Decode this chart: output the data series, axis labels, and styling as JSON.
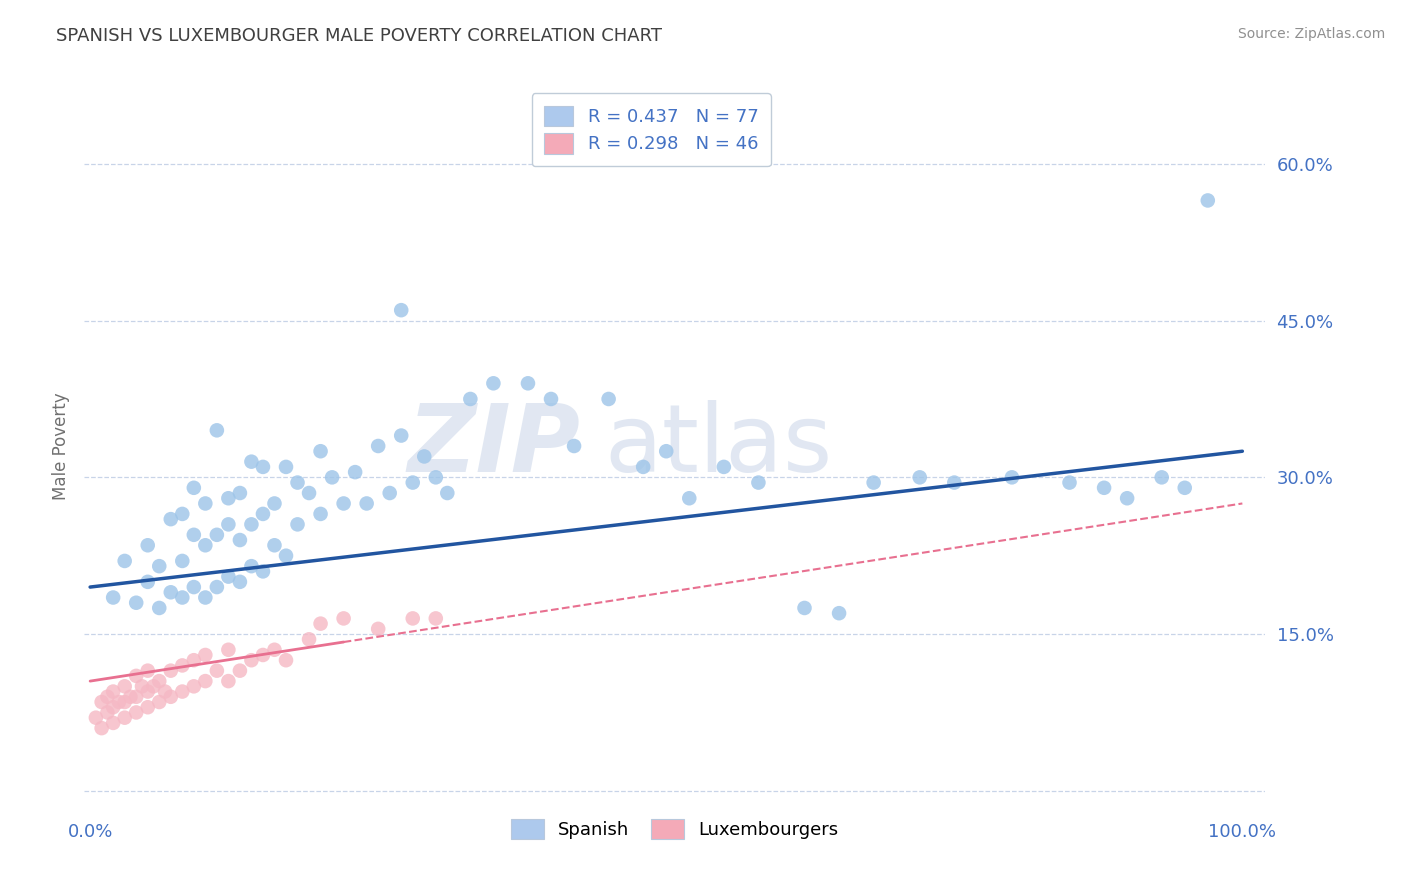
{
  "title": "SPANISH VS LUXEMBOURGER MALE POVERTY CORRELATION CHART",
  "source": "Source: ZipAtlas.com",
  "ylabel": "Male Poverty",
  "xlim": [
    -0.005,
    1.02
  ],
  "ylim": [
    -0.02,
    0.68
  ],
  "xticks": [
    0.0,
    1.0
  ],
  "xticklabels": [
    "0.0%",
    "100.0%"
  ],
  "yticks": [
    0.15,
    0.3,
    0.45,
    0.6
  ],
  "yticklabels": [
    "15.0%",
    "30.0%",
    "45.0%",
    "60.0%"
  ],
  "grid_yticks": [
    0.0,
    0.15,
    0.3,
    0.45,
    0.6
  ],
  "legend_entries": [
    {
      "label": "R = 0.437   N = 77",
      "color": "#adc9ed"
    },
    {
      "label": "R = 0.298   N = 46",
      "color": "#f4aab8"
    }
  ],
  "bottom_legend": [
    "Spanish",
    "Luxembourgers"
  ],
  "bottom_legend_colors": [
    "#adc9ed",
    "#f4aab8"
  ],
  "title_color": "#404040",
  "title_fontsize": 13,
  "axis_label_color": "#707070",
  "tick_label_color": "#4472c4",
  "grid_color": "#c8d4e8",
  "spanish_color": "#9dc4e8",
  "luxembourger_color": "#f5b8c4",
  "trend_spanish_color": "#2255a0",
  "trend_luxembourger_color": "#e87090",
  "watermark_zip": "ZIP",
  "watermark_atlas": "atlas",
  "spanish_x": [
    0.02,
    0.03,
    0.04,
    0.05,
    0.05,
    0.06,
    0.06,
    0.07,
    0.07,
    0.08,
    0.08,
    0.08,
    0.09,
    0.09,
    0.09,
    0.1,
    0.1,
    0.1,
    0.11,
    0.11,
    0.11,
    0.12,
    0.12,
    0.12,
    0.13,
    0.13,
    0.13,
    0.14,
    0.14,
    0.14,
    0.15,
    0.15,
    0.15,
    0.16,
    0.16,
    0.17,
    0.17,
    0.18,
    0.18,
    0.19,
    0.2,
    0.2,
    0.21,
    0.22,
    0.23,
    0.24,
    0.25,
    0.26,
    0.27,
    0.27,
    0.28,
    0.29,
    0.3,
    0.31,
    0.33,
    0.35,
    0.38,
    0.4,
    0.42,
    0.45,
    0.48,
    0.5,
    0.52,
    0.55,
    0.58,
    0.62,
    0.65,
    0.68,
    0.72,
    0.75,
    0.8,
    0.85,
    0.88,
    0.9,
    0.93,
    0.95,
    0.97
  ],
  "spanish_y": [
    0.185,
    0.22,
    0.18,
    0.2,
    0.235,
    0.175,
    0.215,
    0.19,
    0.26,
    0.185,
    0.22,
    0.265,
    0.195,
    0.245,
    0.29,
    0.185,
    0.235,
    0.275,
    0.195,
    0.245,
    0.345,
    0.205,
    0.255,
    0.28,
    0.2,
    0.24,
    0.285,
    0.215,
    0.255,
    0.315,
    0.21,
    0.265,
    0.31,
    0.235,
    0.275,
    0.225,
    0.31,
    0.255,
    0.295,
    0.285,
    0.265,
    0.325,
    0.3,
    0.275,
    0.305,
    0.275,
    0.33,
    0.285,
    0.34,
    0.46,
    0.295,
    0.32,
    0.3,
    0.285,
    0.375,
    0.39,
    0.39,
    0.375,
    0.33,
    0.375,
    0.31,
    0.325,
    0.28,
    0.31,
    0.295,
    0.175,
    0.17,
    0.295,
    0.3,
    0.295,
    0.3,
    0.295,
    0.29,
    0.28,
    0.3,
    0.29,
    0.565
  ],
  "lux_x": [
    0.005,
    0.01,
    0.01,
    0.015,
    0.015,
    0.02,
    0.02,
    0.02,
    0.025,
    0.03,
    0.03,
    0.03,
    0.035,
    0.04,
    0.04,
    0.04,
    0.045,
    0.05,
    0.05,
    0.05,
    0.055,
    0.06,
    0.06,
    0.065,
    0.07,
    0.07,
    0.08,
    0.08,
    0.09,
    0.09,
    0.1,
    0.1,
    0.11,
    0.12,
    0.12,
    0.13,
    0.14,
    0.15,
    0.16,
    0.17,
    0.19,
    0.2,
    0.22,
    0.25,
    0.28,
    0.3
  ],
  "lux_y": [
    0.07,
    0.06,
    0.085,
    0.075,
    0.09,
    0.065,
    0.08,
    0.095,
    0.085,
    0.07,
    0.085,
    0.1,
    0.09,
    0.075,
    0.09,
    0.11,
    0.1,
    0.08,
    0.095,
    0.115,
    0.1,
    0.085,
    0.105,
    0.095,
    0.09,
    0.115,
    0.095,
    0.12,
    0.1,
    0.125,
    0.105,
    0.13,
    0.115,
    0.105,
    0.135,
    0.115,
    0.125,
    0.13,
    0.135,
    0.125,
    0.145,
    0.16,
    0.165,
    0.155,
    0.165,
    0.165
  ],
  "trend_spanish_x0": 0.0,
  "trend_spanish_y0": 0.195,
  "trend_spanish_x1": 1.0,
  "trend_spanish_y1": 0.325,
  "trend_lux_x0": 0.0,
  "trend_lux_y0": 0.105,
  "trend_lux_x1": 1.0,
  "trend_lux_y1": 0.275,
  "trend_lux_solid_end": 0.22
}
